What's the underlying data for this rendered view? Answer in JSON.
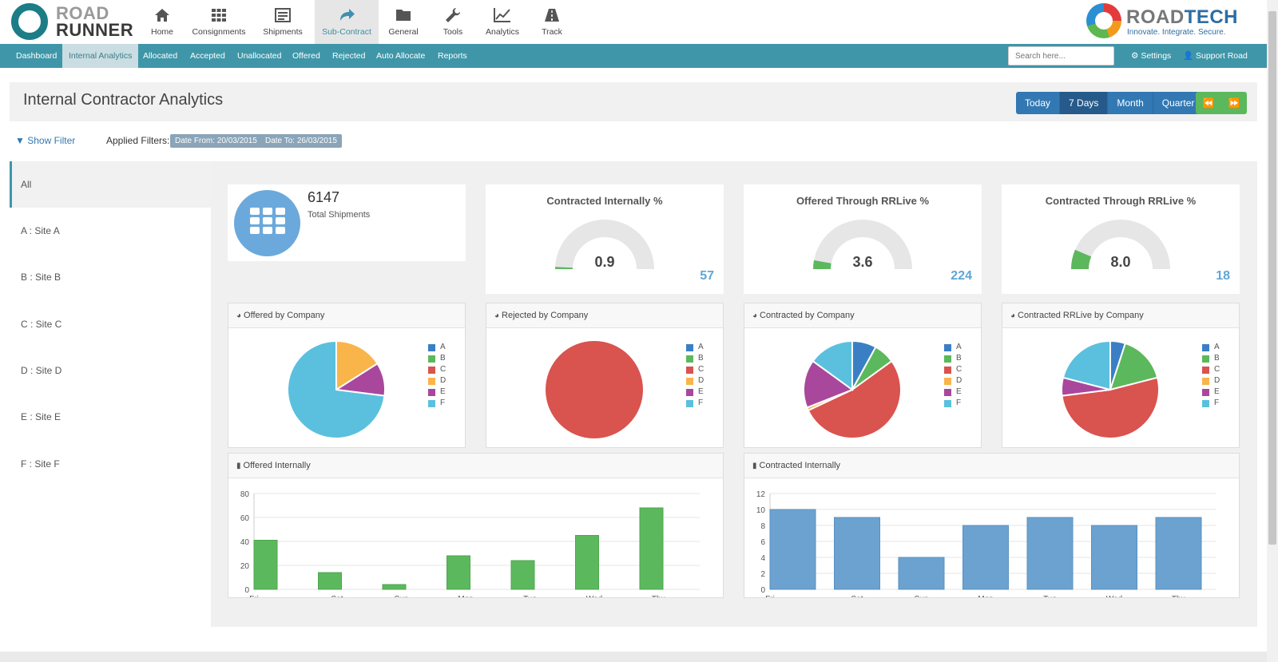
{
  "logo": {
    "line1": "ROAD",
    "line2": "RUNNER"
  },
  "main_nav": [
    {
      "label": "Home",
      "icon": "home-icon"
    },
    {
      "label": "Consignments",
      "icon": "grid-icon"
    },
    {
      "label": "Shipments",
      "icon": "list-icon"
    },
    {
      "label": "Sub-Contract",
      "icon": "share-icon",
      "active": true
    },
    {
      "label": "General",
      "icon": "folder-icon"
    },
    {
      "label": "Tools",
      "icon": "wrench-icon"
    },
    {
      "label": "Analytics",
      "icon": "line-chart-icon"
    },
    {
      "label": "Track",
      "icon": "road-icon"
    }
  ],
  "brand": {
    "name_a": "ROAD",
    "name_b": "TECH",
    "tagline": "Innovate. Integrate. Secure."
  },
  "sub_nav": [
    {
      "label": "Dashboard"
    },
    {
      "label": "Internal Analytics",
      "active": true
    },
    {
      "label": "Allocated"
    },
    {
      "label": "Accepted"
    },
    {
      "label": "Unallocated"
    },
    {
      "label": "Offered"
    },
    {
      "label": "Rejected"
    },
    {
      "label": "Auto Allocate"
    },
    {
      "label": "Reports"
    }
  ],
  "search": {
    "placeholder": "Search here..."
  },
  "settings_label": "Settings",
  "support_label": "Support Road Tech",
  "page": {
    "title": "Internal Contractor Analytics"
  },
  "period_buttons": [
    "Today",
    "7 Days",
    "Month",
    "Quarter"
  ],
  "active_period": "7 Days",
  "filter": {
    "show_label": "Show Filter",
    "applied_label": "Applied Filters:",
    "tags": [
      "Date From: 20/03/2015",
      "Date To: 26/03/2015"
    ]
  },
  "sites": [
    "All",
    "A : Site A",
    "B : Site B",
    "C : Site C",
    "D : Site D",
    "E : Site E",
    "F : Site F"
  ],
  "total": {
    "value": "6147",
    "label": "Total Shipments"
  },
  "gauges": [
    {
      "title": "Contracted Internally %",
      "value": "0.9",
      "count": "57",
      "percent": 0.9
    },
    {
      "title": "Offered Through RRLive %",
      "value": "3.6",
      "count": "224",
      "percent": 3.6
    },
    {
      "title": "Contracted Through RRLive %",
      "value": "8.0",
      "count": "18",
      "percent": 8.0
    }
  ],
  "colors": {
    "accent": "#3f96a8",
    "A": "#3a7fc4",
    "B": "#5cb85c",
    "C": "#d9534f",
    "D": "#f9b54a",
    "E": "#a9479c",
    "F": "#5bc0de",
    "bar_green": "#5cb85c",
    "bar_blue": "#6ba2cf"
  },
  "legend_labels": [
    "A",
    "B",
    "C",
    "D",
    "E",
    "F"
  ],
  "pie_charts": [
    {
      "title": "Offered by Company",
      "slices": {
        "A": 0,
        "B": 0,
        "C": 0,
        "D": 16,
        "E": 11,
        "F": 73
      }
    },
    {
      "title": "Rejected by Company",
      "slices": {
        "A": 0,
        "B": 0,
        "C": 100,
        "D": 0,
        "E": 0,
        "F": 0
      }
    },
    {
      "title": "Contracted by Company",
      "slices": {
        "A": 8,
        "B": 7,
        "C": 53,
        "D": 1,
        "E": 16,
        "F": 15
      }
    },
    {
      "title": "Contracted RRLive by Company",
      "slices": {
        "A": 5,
        "B": 16,
        "C": 52,
        "D": 0,
        "E": 6,
        "F": 21
      }
    }
  ],
  "chart_data": [
    {
      "type": "bar",
      "title": "Offered Internally",
      "categories": [
        "Fri",
        "Sat",
        "Sun",
        "Mon",
        "Tue",
        "Wed",
        "Thu"
      ],
      "values": [
        41,
        14,
        4,
        28,
        24,
        45,
        68
      ],
      "ylim": [
        0,
        80
      ],
      "yticks": [
        0,
        20,
        40,
        60,
        80
      ],
      "grid": true
    },
    {
      "type": "bar",
      "title": "Contracted Internally",
      "categories": [
        "Fri",
        "Sat",
        "Sun",
        "Mon",
        "Tue",
        "Wed",
        "Thu"
      ],
      "values": [
        10,
        9,
        4,
        8,
        9,
        8,
        9
      ],
      "ylim": [
        0,
        12
      ],
      "yticks": [
        0,
        2,
        4,
        6,
        8,
        10,
        12
      ],
      "grid": true
    }
  ]
}
